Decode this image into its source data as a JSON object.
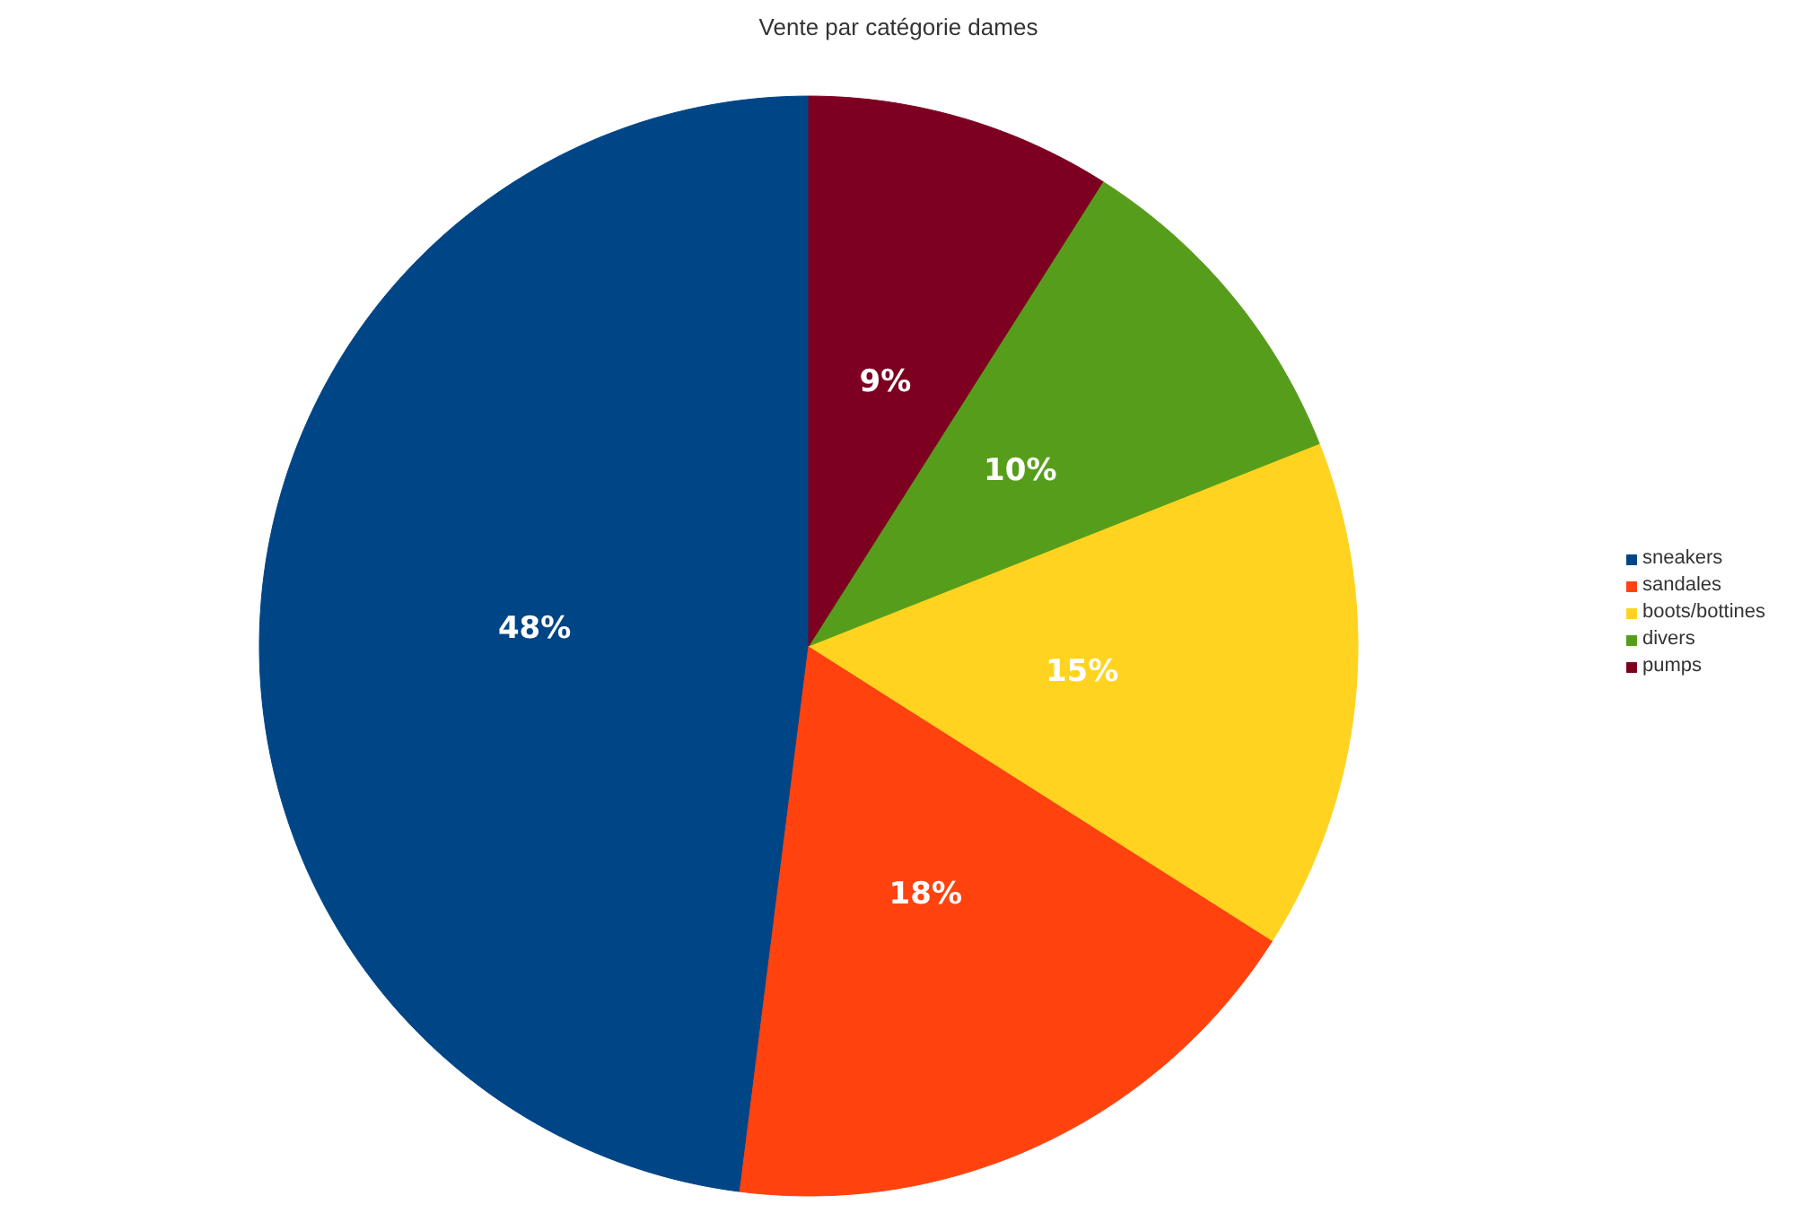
{
  "chart_data": {
    "type": "pie",
    "title": "Vente par catégorie dames",
    "categories": [
      "sneakers",
      "sandales",
      "boots/bottines",
      "divers",
      "pumps"
    ],
    "values": [
      48,
      18,
      15,
      10,
      9
    ],
    "colors": [
      "#004586",
      "#ff420e",
      "#ffd320",
      "#579d1c",
      "#7e0021"
    ],
    "value_labels": [
      "48%",
      "18%",
      "15%",
      "10%",
      "9%"
    ],
    "legend": "right"
  }
}
